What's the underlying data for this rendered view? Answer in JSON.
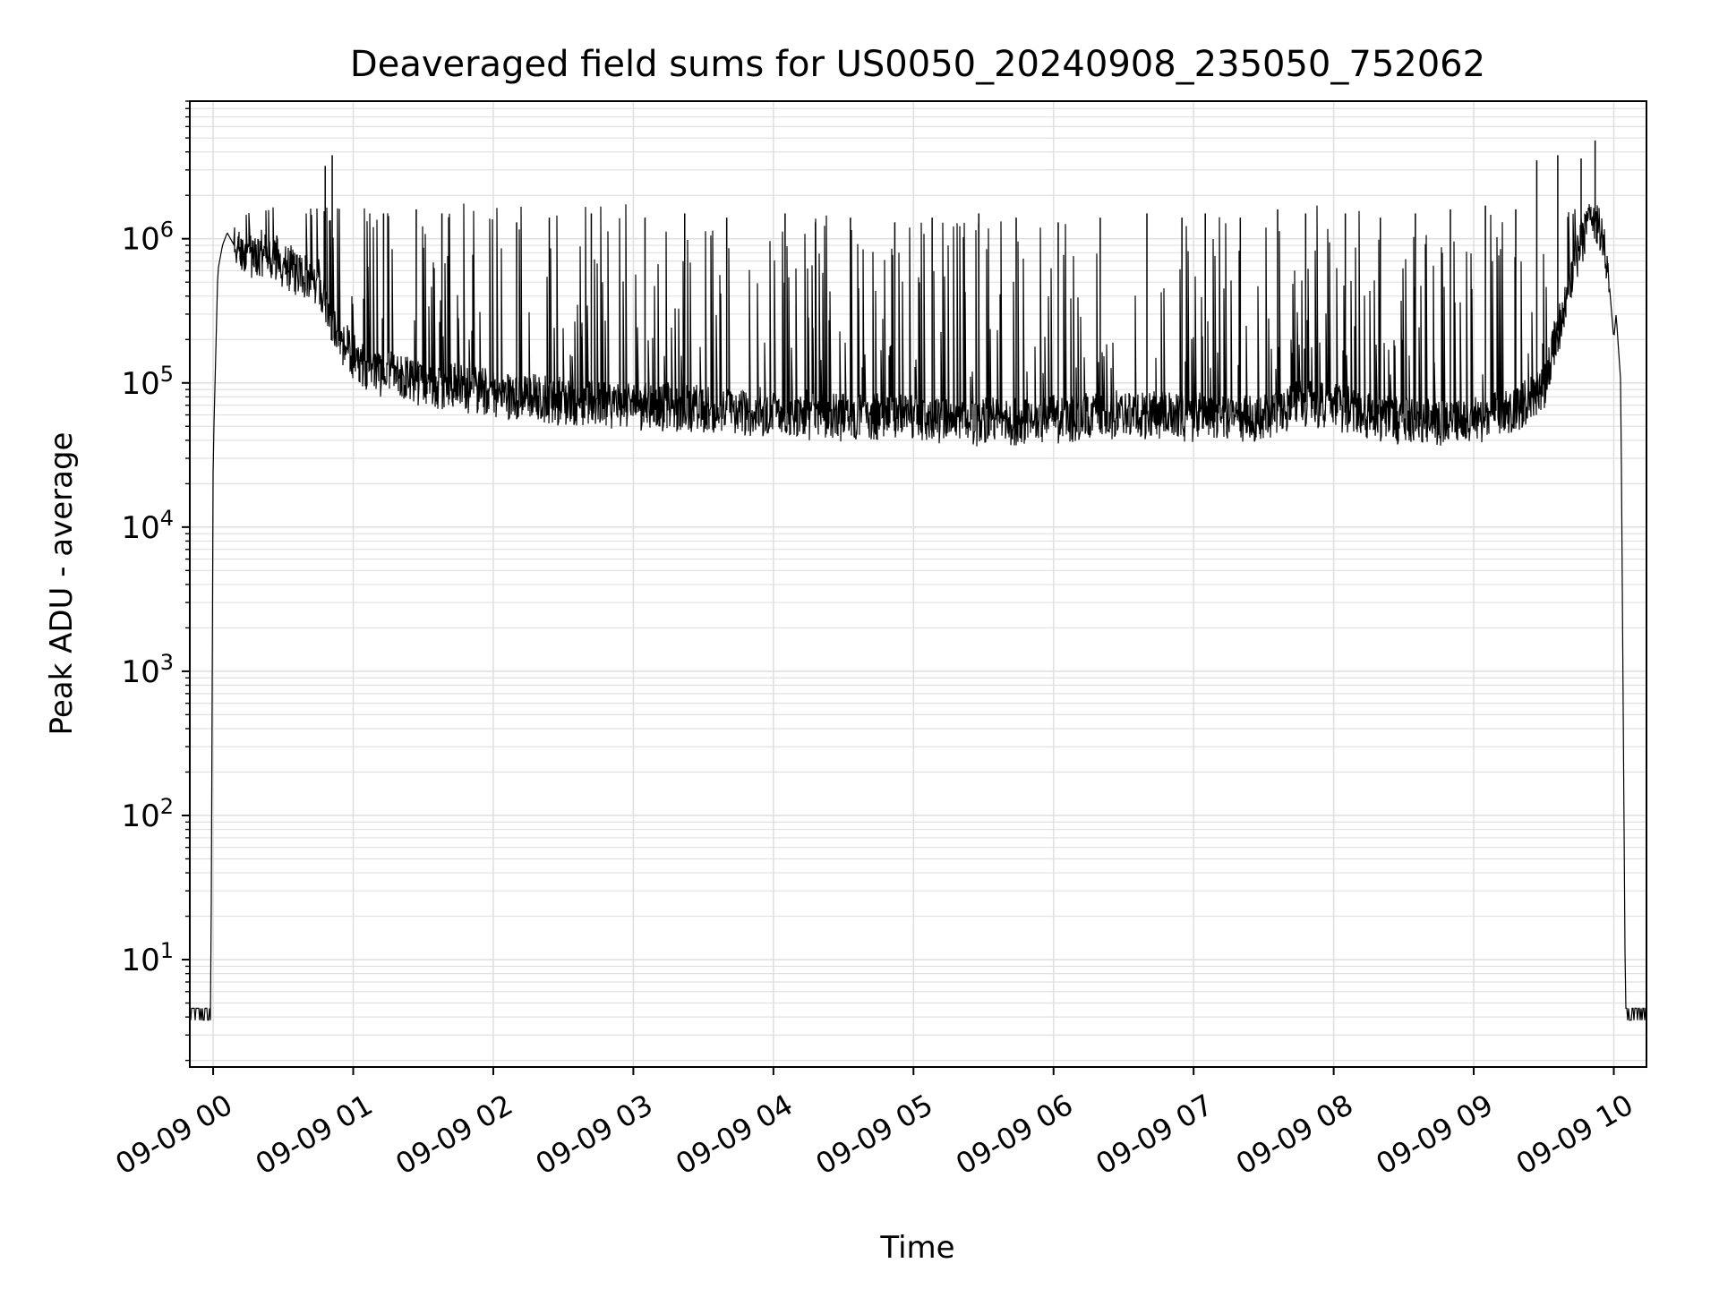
{
  "chart_data": {
    "type": "line",
    "title": "Deaveraged field sums for US0050_20240908_235050_752062",
    "xlabel": "Time",
    "ylabel": "Peak ADU - average",
    "yscale": "log",
    "ylim": [
      1.8,
      9000000
    ],
    "xlim": [
      "2024-09-08 23:50",
      "2024-09-09 10:14"
    ],
    "grid": true,
    "line_color": "#000000",
    "grid_color": "#e0e0e0",
    "x_ticks": [
      {
        "t": "2024-09-09 00:00",
        "label": "09-09 00"
      },
      {
        "t": "2024-09-09 01:00",
        "label": "09-09 01"
      },
      {
        "t": "2024-09-09 02:00",
        "label": "09-09 02"
      },
      {
        "t": "2024-09-09 03:00",
        "label": "09-09 03"
      },
      {
        "t": "2024-09-09 04:00",
        "label": "09-09 04"
      },
      {
        "t": "2024-09-09 05:00",
        "label": "09-09 05"
      },
      {
        "t": "2024-09-09 06:00",
        "label": "09-09 06"
      },
      {
        "t": "2024-09-09 07:00",
        "label": "09-09 07"
      },
      {
        "t": "2024-09-09 08:00",
        "label": "09-09 08"
      },
      {
        "t": "2024-09-09 09:00",
        "label": "09-09 09"
      },
      {
        "t": "2024-09-09 10:00",
        "label": "09-09 10"
      }
    ],
    "y_ticks": [
      {
        "value": 10,
        "base": "10",
        "exp": "1"
      },
      {
        "value": 100,
        "base": "10",
        "exp": "2"
      },
      {
        "value": 1000,
        "base": "10",
        "exp": "3"
      },
      {
        "value": 10000,
        "base": "10",
        "exp": "4"
      },
      {
        "value": 100000,
        "base": "10",
        "exp": "5"
      },
      {
        "value": 1000000,
        "base": "10",
        "exp": "6"
      }
    ],
    "series": [
      {
        "x": [
          "2024-09-08 23:51",
          "2024-09-08 23:58",
          "2024-09-08 23:59",
          "2024-09-09 00:00",
          "2024-09-09 00:02",
          "2024-09-09 00:04",
          "2024-09-09 00:06",
          "2024-09-09 00:09",
          "2024-09-09 00:15",
          "2024-09-09 00:25",
          "2024-09-09 00:35",
          "2024-09-09 00:45",
          "2024-09-09 00:50",
          "2024-09-09 00:55",
          "2024-09-09 01:00",
          "2024-09-09 01:10",
          "2024-09-09 01:20",
          "2024-09-09 01:30",
          "2024-09-09 01:40",
          "2024-09-09 01:50",
          "2024-09-09 02:00",
          "2024-09-09 02:15",
          "2024-09-09 02:30",
          "2024-09-09 02:45",
          "2024-09-09 03:00",
          "2024-09-09 03:15",
          "2024-09-09 03:30",
          "2024-09-09 03:45",
          "2024-09-09 04:00",
          "2024-09-09 04:15",
          "2024-09-09 04:30",
          "2024-09-09 04:45",
          "2024-09-09 05:00",
          "2024-09-09 05:15",
          "2024-09-09 05:30",
          "2024-09-09 05:45",
          "2024-09-09 06:00",
          "2024-09-09 06:15",
          "2024-09-09 06:30",
          "2024-09-09 06:45",
          "2024-09-09 07:00",
          "2024-09-09 07:15",
          "2024-09-09 07:30",
          "2024-09-09 07:45",
          "2024-09-09 08:00",
          "2024-09-09 08:15",
          "2024-09-09 08:30",
          "2024-09-09 08:45",
          "2024-09-09 09:00",
          "2024-09-09 09:10",
          "2024-09-09 09:20",
          "2024-09-09 09:30",
          "2024-09-09 09:35",
          "2024-09-09 09:40",
          "2024-09-09 09:45",
          "2024-09-09 09:50",
          "2024-09-09 09:55",
          "2024-09-09 09:58",
          "2024-09-09 10:00",
          "2024-09-09 10:01",
          "2024-09-09 10:03",
          "2024-09-09 10:05",
          "2024-09-09 10:14"
        ],
        "y": [
          4,
          4,
          4,
          30000,
          600000,
          900000,
          1100000,
          900000,
          800000,
          750000,
          600000,
          500000,
          300000,
          200000,
          150000,
          120000,
          110000,
          100000,
          95000,
          90000,
          85000,
          80000,
          75000,
          72000,
          70000,
          68000,
          66000,
          64000,
          62000,
          60000,
          58000,
          57000,
          56000,
          55000,
          54000,
          55000,
          56000,
          58000,
          62000,
          60000,
          58000,
          56000,
          57000,
          75000,
          70000,
          60000,
          55000,
          54000,
          55000,
          60000,
          70000,
          90000,
          200000,
          400000,
          800000,
          1400000,
          1200000,
          500000,
          200000,
          300000,
          100000,
          4,
          4
        ]
      }
    ],
    "spikes": {
      "x": [
        "2024-09-09 00:48",
        "2024-09-09 00:51",
        "2024-09-09 01:13",
        "2024-09-09 01:27",
        "2024-09-09 01:38",
        "2024-09-09 02:10",
        "2024-09-09 02:24",
        "2024-09-09 02:42",
        "2024-09-09 03:05",
        "2024-09-09 03:22",
        "2024-09-09 03:40",
        "2024-09-09 04:05",
        "2024-09-09 04:18",
        "2024-09-09 04:33",
        "2024-09-09 04:52",
        "2024-09-09 05:08",
        "2024-09-09 05:28",
        "2024-09-09 05:44",
        "2024-09-09 06:02",
        "2024-09-09 06:20",
        "2024-09-09 06:40",
        "2024-09-09 06:55",
        "2024-09-09 07:05",
        "2024-09-09 07:20",
        "2024-09-09 07:36",
        "2024-09-09 07:48",
        "2024-09-09 08:05",
        "2024-09-09 08:20",
        "2024-09-09 08:35",
        "2024-09-09 08:50",
        "2024-09-09 09:05",
        "2024-09-09 09:18",
        "2024-09-09 09:27",
        "2024-09-09 09:36",
        "2024-09-09 09:46",
        "2024-09-09 09:52"
      ],
      "y": [
        3200000,
        3800000,
        1500000,
        1600000,
        1500000,
        1300000,
        1400000,
        1500000,
        1400000,
        1500000,
        1400000,
        1500000,
        1300000,
        1400000,
        1300000,
        1400000,
        1500000,
        1400000,
        1300000,
        1400000,
        1500000,
        1400000,
        1500000,
        1400000,
        1600000,
        1500000,
        1500000,
        1400000,
        1500000,
        1600000,
        1700000,
        1600000,
        3500000,
        3800000,
        3600000,
        4800000
      ]
    }
  }
}
